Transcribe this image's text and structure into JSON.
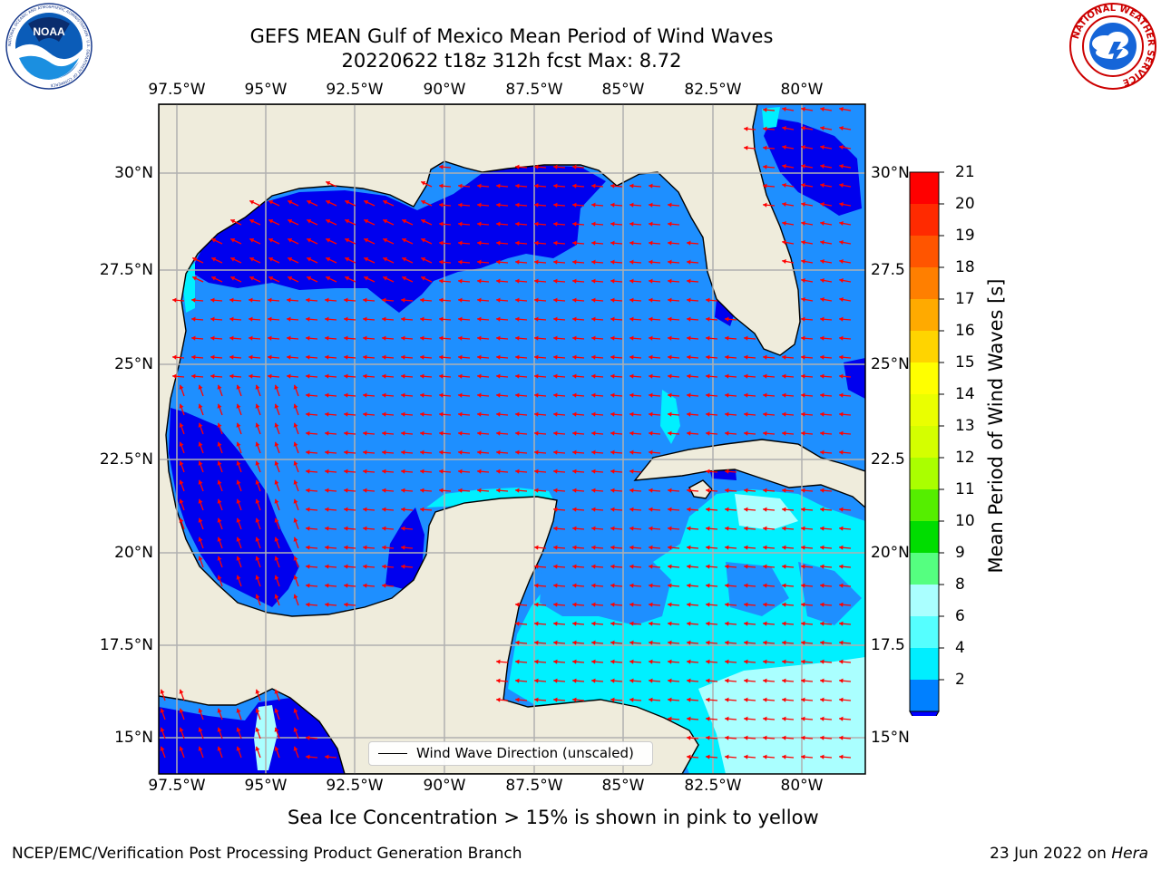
{
  "header": {
    "title_line1": "GEFS MEAN Gulf of Mexico Mean Period of Wind Waves",
    "title_line2": "20220622 t18z 312h fcst   Max: 8.72"
  },
  "logos": {
    "noaa_text": "NOAA",
    "noaa_ring_text": "NATIONAL OCEANIC AND ATMOSPHERIC ADMINISTRATION · U.S. DEPARTMENT OF COMMERCE",
    "nws_ring_text": "NATIONAL WEATHER SERVICE"
  },
  "map": {
    "lon_ticks": [
      "97.5°W",
      "95°W",
      "92.5°W",
      "90°W",
      "87.5°W",
      "85°W",
      "82.5°W",
      "80°W"
    ],
    "lat_ticks_left": [
      "30°N",
      "27.5°N",
      "25°N",
      "22.5°N",
      "20°N",
      "17.5°N",
      "15°N"
    ],
    "lat_ticks_right": [
      "30°N",
      "27.5",
      "25°N",
      "22.5",
      "20°N",
      "17.5",
      "15°N"
    ],
    "extent": {
      "lon_min": -98,
      "lon_max": -78.2,
      "lat_min": 14,
      "lat_max": 31.8
    },
    "grid": true,
    "land_color": "#efecdc",
    "arrow_color": "#ff0000"
  },
  "legend": {
    "label": "Wind Wave Direction (unscaled)"
  },
  "colorbar": {
    "label": "Mean Period of Wind Waves [s]",
    "ticks": [
      "21",
      "20",
      "19",
      "18",
      "17",
      "16",
      "15",
      "14",
      "13",
      "12",
      "11",
      "10",
      "9",
      "8",
      "6",
      "4",
      "2"
    ],
    "colors": [
      "#ff0000",
      "#ff2a00",
      "#ff5500",
      "#ff7f00",
      "#ffaa00",
      "#ffd400",
      "#ffff00",
      "#eaff00",
      "#d4ff00",
      "#aaff00",
      "#55ee00",
      "#00dd00",
      "#55ff80",
      "#aaffff",
      "#55ffff",
      "#00eeff",
      "#0080ff"
    ],
    "extend_color": "#0000ff"
  },
  "field_colors": {
    "period_2": "#0000ee",
    "period_4": "#1e8fff",
    "period_6": "#00f0ff",
    "period_8": "#aaffff"
  },
  "note": "Sea Ice Concentration > 15% is shown in pink to yellow",
  "footer": {
    "left": "NCEP/EMC/Verification Post Processing Product Generation Branch",
    "date": "23 Jun 2022 on",
    "host": "Hera"
  }
}
